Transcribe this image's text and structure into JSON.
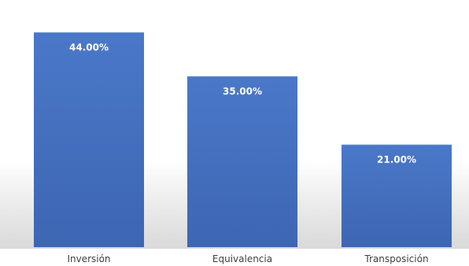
{
  "chart_data": {
    "type": "bar",
    "categories": [
      "Inversión",
      "Equivalencia",
      "Transposición"
    ],
    "values": [
      44.0,
      35.0,
      21.0
    ],
    "data_labels": [
      "44.00%",
      "35.00%",
      "21.00%"
    ],
    "unit": "%",
    "ylim": [
      0,
      50
    ],
    "grid": false,
    "legend": "none",
    "bar_color": "#4472C4"
  }
}
